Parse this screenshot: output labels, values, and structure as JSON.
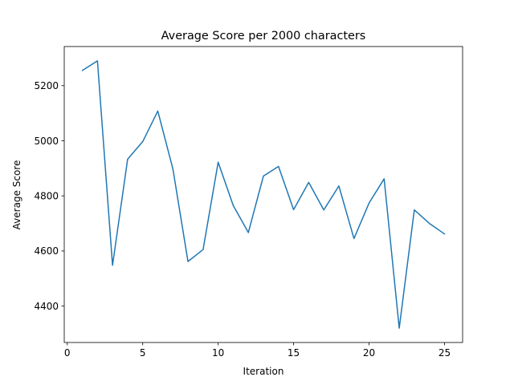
{
  "chart_data": {
    "type": "line",
    "title": "Average Score per 2000 characters",
    "xlabel": "Iteration",
    "ylabel": "Average Score",
    "xlim": [
      -0.2,
      26.2
    ],
    "ylim": [
      4268,
      5342
    ],
    "xticks": [
      0,
      5,
      10,
      15,
      20,
      25
    ],
    "yticks": [
      4400,
      4600,
      4800,
      5000,
      5200
    ],
    "grid": false,
    "series": [
      {
        "color": "#1f77b4",
        "x": [
          1,
          2,
          3,
          4,
          5,
          6,
          7,
          8,
          9,
          10,
          11,
          12,
          13,
          14,
          15,
          16,
          17,
          18,
          19,
          20,
          21,
          22,
          23,
          24,
          25
        ],
        "y": [
          5255,
          5290,
          4548,
          4933,
          4997,
          5108,
          4898,
          4562,
          4605,
          4922,
          4765,
          4667,
          4872,
          4907,
          4750,
          4849,
          4749,
          4836,
          4645,
          4774,
          4862,
          4320,
          4749,
          4700,
          4662
        ]
      }
    ]
  }
}
